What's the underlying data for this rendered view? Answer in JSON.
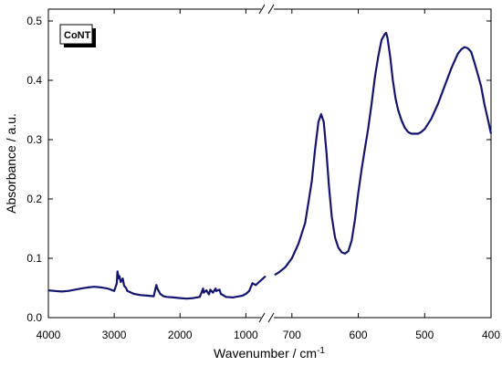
{
  "chart_data": {
    "type": "line",
    "title": "",
    "xlabel": "Wavenumber / cm",
    "xlabel_superscript": "-1",
    "ylabel": "Absorbance / a.u.",
    "ylim": [
      0.0,
      0.52
    ],
    "yticks": [
      "0.0",
      "0.1",
      "0.2",
      "0.3",
      "0.4",
      "0.5"
    ],
    "x_axis_broken": true,
    "x_segments": [
      {
        "range": [
          4000,
          700
        ],
        "ticks": [
          "4000",
          "3000",
          "2000",
          "1000"
        ]
      },
      {
        "range": [
          730,
          400
        ],
        "ticks": [
          "700",
          "600",
          "500",
          "400"
        ]
      }
    ],
    "grid": false,
    "legend": {
      "position": "top-left",
      "entries": [
        "CoNT"
      ]
    },
    "series_color": "#14146e",
    "series": [
      {
        "name": "CoNT",
        "segments": [
          {
            "x": [
              4000,
              3900,
              3800,
              3700,
              3600,
              3500,
              3400,
              3300,
              3200,
              3100,
              3050,
              3000,
              2960,
              2950,
              2930,
              2920,
              2900,
              2870,
              2850,
              2820,
              2800,
              2700,
              2600,
              2500,
              2400,
              2360,
              2340,
              2300,
              2250,
              2200,
              2100,
              2000,
              1900,
              1800,
              1700,
              1650,
              1640,
              1600,
              1560,
              1540,
              1500,
              1460,
              1450,
              1400,
              1380,
              1300,
              1200,
              1100,
              1050,
              1000,
              950,
              900,
              850,
              800,
              750,
              700
            ],
            "y": [
              0.046,
              0.045,
              0.044,
              0.045,
              0.047,
              0.049,
              0.051,
              0.052,
              0.051,
              0.049,
              0.047,
              0.045,
              0.058,
              0.078,
              0.066,
              0.07,
              0.06,
              0.066,
              0.054,
              0.05,
              0.045,
              0.04,
              0.038,
              0.037,
              0.036,
              0.055,
              0.048,
              0.04,
              0.036,
              0.035,
              0.034,
              0.033,
              0.032,
              0.033,
              0.035,
              0.049,
              0.042,
              0.046,
              0.039,
              0.047,
              0.042,
              0.049,
              0.045,
              0.047,
              0.04,
              0.035,
              0.034,
              0.036,
              0.037,
              0.04,
              0.045,
              0.058,
              0.055,
              0.06,
              0.065,
              0.07
            ]
          },
          {
            "x": [
              726,
              720,
              710,
              700,
              690,
              680,
              670,
              665,
              660,
              656,
              652,
              648,
              644,
              640,
              635,
              630,
              625,
              620,
              615,
              610,
              605,
              600,
              595,
              590,
              585,
              580,
              575,
              570,
              565,
              560,
              558,
              556,
              552,
              548,
              544,
              540,
              535,
              530,
              525,
              520,
              515,
              510,
              505,
              500,
              490,
              480,
              470,
              460,
              450,
              445,
              440,
              435,
              430,
              425,
              420,
              415,
              410,
              405,
              400
            ],
            "y": [
              0.072,
              0.076,
              0.085,
              0.1,
              0.125,
              0.16,
              0.23,
              0.285,
              0.33,
              0.343,
              0.33,
              0.28,
              0.22,
              0.17,
              0.135,
              0.118,
              0.11,
              0.108,
              0.112,
              0.13,
              0.165,
              0.21,
              0.25,
              0.285,
              0.32,
              0.36,
              0.405,
              0.44,
              0.468,
              0.478,
              0.48,
              0.472,
              0.44,
              0.4,
              0.37,
              0.35,
              0.333,
              0.32,
              0.313,
              0.31,
              0.31,
              0.31,
              0.313,
              0.318,
              0.335,
              0.36,
              0.39,
              0.42,
              0.445,
              0.452,
              0.456,
              0.454,
              0.448,
              0.43,
              0.41,
              0.39,
              0.36,
              0.335,
              0.31
            ]
          }
        ]
      }
    ]
  }
}
